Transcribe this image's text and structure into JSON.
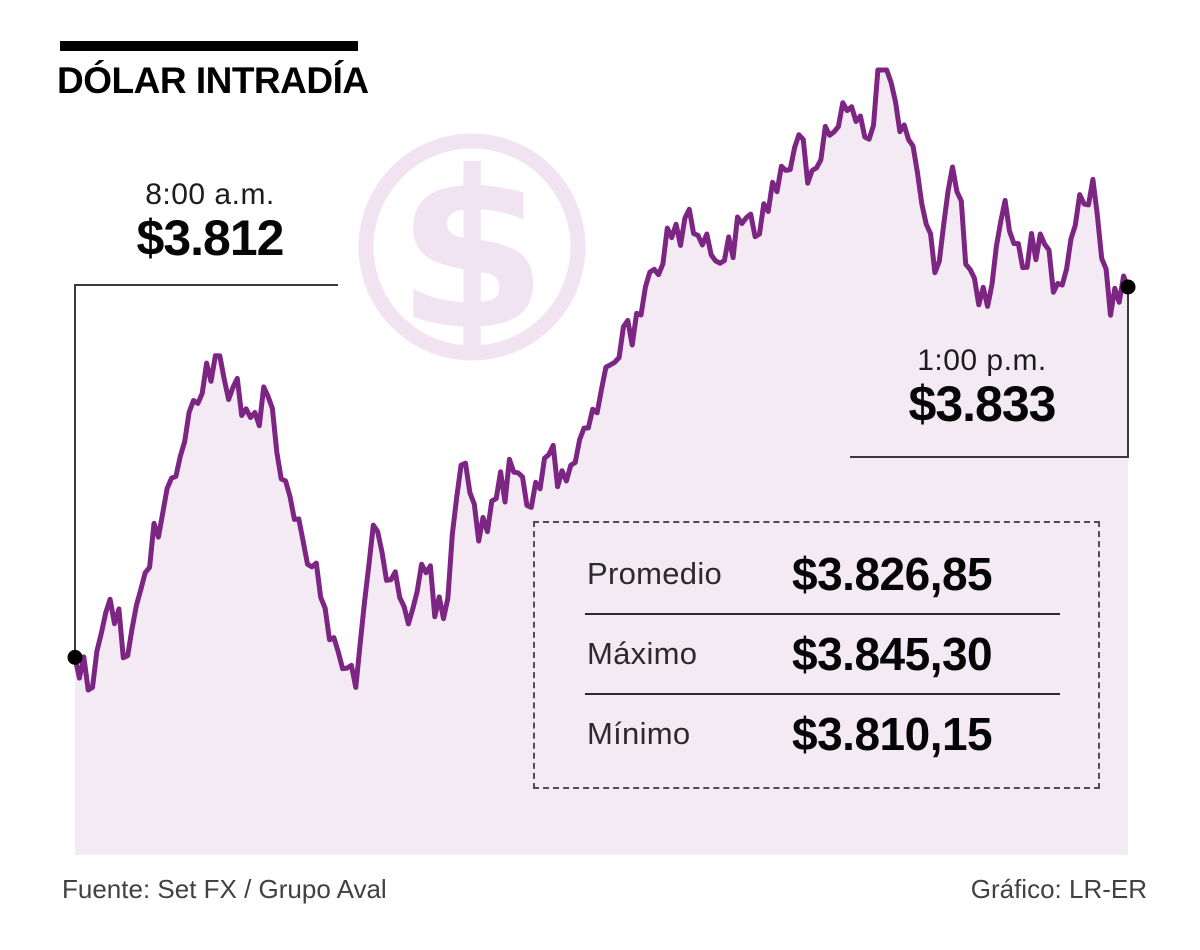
{
  "header": {
    "title": "DÓLAR INTRADÍA"
  },
  "watermark": {
    "glyph": "$"
  },
  "colors": {
    "line": "#7c2583",
    "area_fill": "#f3eaf4",
    "watermark": "#f1e3f2",
    "marker": "#000000",
    "callout_line": "#3a3a3a"
  },
  "chart_data": {
    "type": "area",
    "title": "DÓLAR INTRADÍA",
    "xlabel": "",
    "ylabel": "",
    "ylim": [
      3810.15,
      3845.3
    ],
    "x_range": [
      "8:00 a.m.",
      "1:00 p.m."
    ],
    "grid": false,
    "legend": "none",
    "x": [
      "8:00",
      "8:05",
      "8:10",
      "8:15",
      "8:20",
      "8:25",
      "8:30",
      "8:35",
      "8:40",
      "8:45",
      "8:50",
      "8:55",
      "9:00",
      "9:05",
      "9:10",
      "9:15",
      "9:20",
      "9:25",
      "9:30",
      "9:35",
      "9:40",
      "9:45",
      "9:50",
      "9:55",
      "10:00",
      "10:05",
      "10:10",
      "10:15",
      "10:20",
      "10:25",
      "10:30",
      "10:35",
      "10:40",
      "10:45",
      "10:50",
      "10:55",
      "11:00",
      "11:05",
      "11:10",
      "11:15",
      "11:20",
      "11:25",
      "11:30",
      "11:35",
      "11:40",
      "11:45",
      "11:50",
      "11:55",
      "12:00",
      "12:05",
      "12:10",
      "12:15",
      "12:20",
      "12:25",
      "12:30",
      "12:35",
      "12:40",
      "12:45",
      "12:50",
      "12:55",
      "13:00"
    ],
    "values": [
      3812.0,
      3810.3,
      3815.3,
      3812.1,
      3816.8,
      3820.2,
      3823.4,
      3826.4,
      3829.1,
      3827.3,
      3825.6,
      3826.8,
      3822.0,
      3818.6,
      3815.4,
      3812.3,
      3810.3,
      3819.5,
      3816.4,
      3813.9,
      3816.8,
      3814.2,
      3822.9,
      3818.6,
      3821.0,
      3822.5,
      3820.5,
      3823.5,
      3822.0,
      3825.0,
      3827.2,
      3829.0,
      3831.5,
      3834.0,
      3835.8,
      3837.4,
      3836.0,
      3834.5,
      3836.6,
      3836.0,
      3838.4,
      3840.9,
      3839.6,
      3841.6,
      3843.0,
      3841.5,
      3845.3,
      3841.8,
      3839.5,
      3833.8,
      3839.8,
      3834.0,
      3831.9,
      3837.9,
      3834.1,
      3836.0,
      3833.2,
      3836.5,
      3839.1,
      3831.4,
      3833.0
    ],
    "open": {
      "time": "8:00 a.m.",
      "value": "$3.812"
    },
    "close": {
      "time": "1:00 p.m.",
      "value": "$3.833"
    }
  },
  "stats_box": {
    "rows": [
      {
        "label": "Promedio",
        "value": "$3.826,85"
      },
      {
        "label": "Máximo",
        "value": "$3.845,30"
      },
      {
        "label": "Mínimo",
        "value": "$3.810,15"
      }
    ]
  },
  "footer": {
    "source": "Fuente: Set FX / Grupo Aval",
    "credit": "Gráfico: LR-ER"
  }
}
